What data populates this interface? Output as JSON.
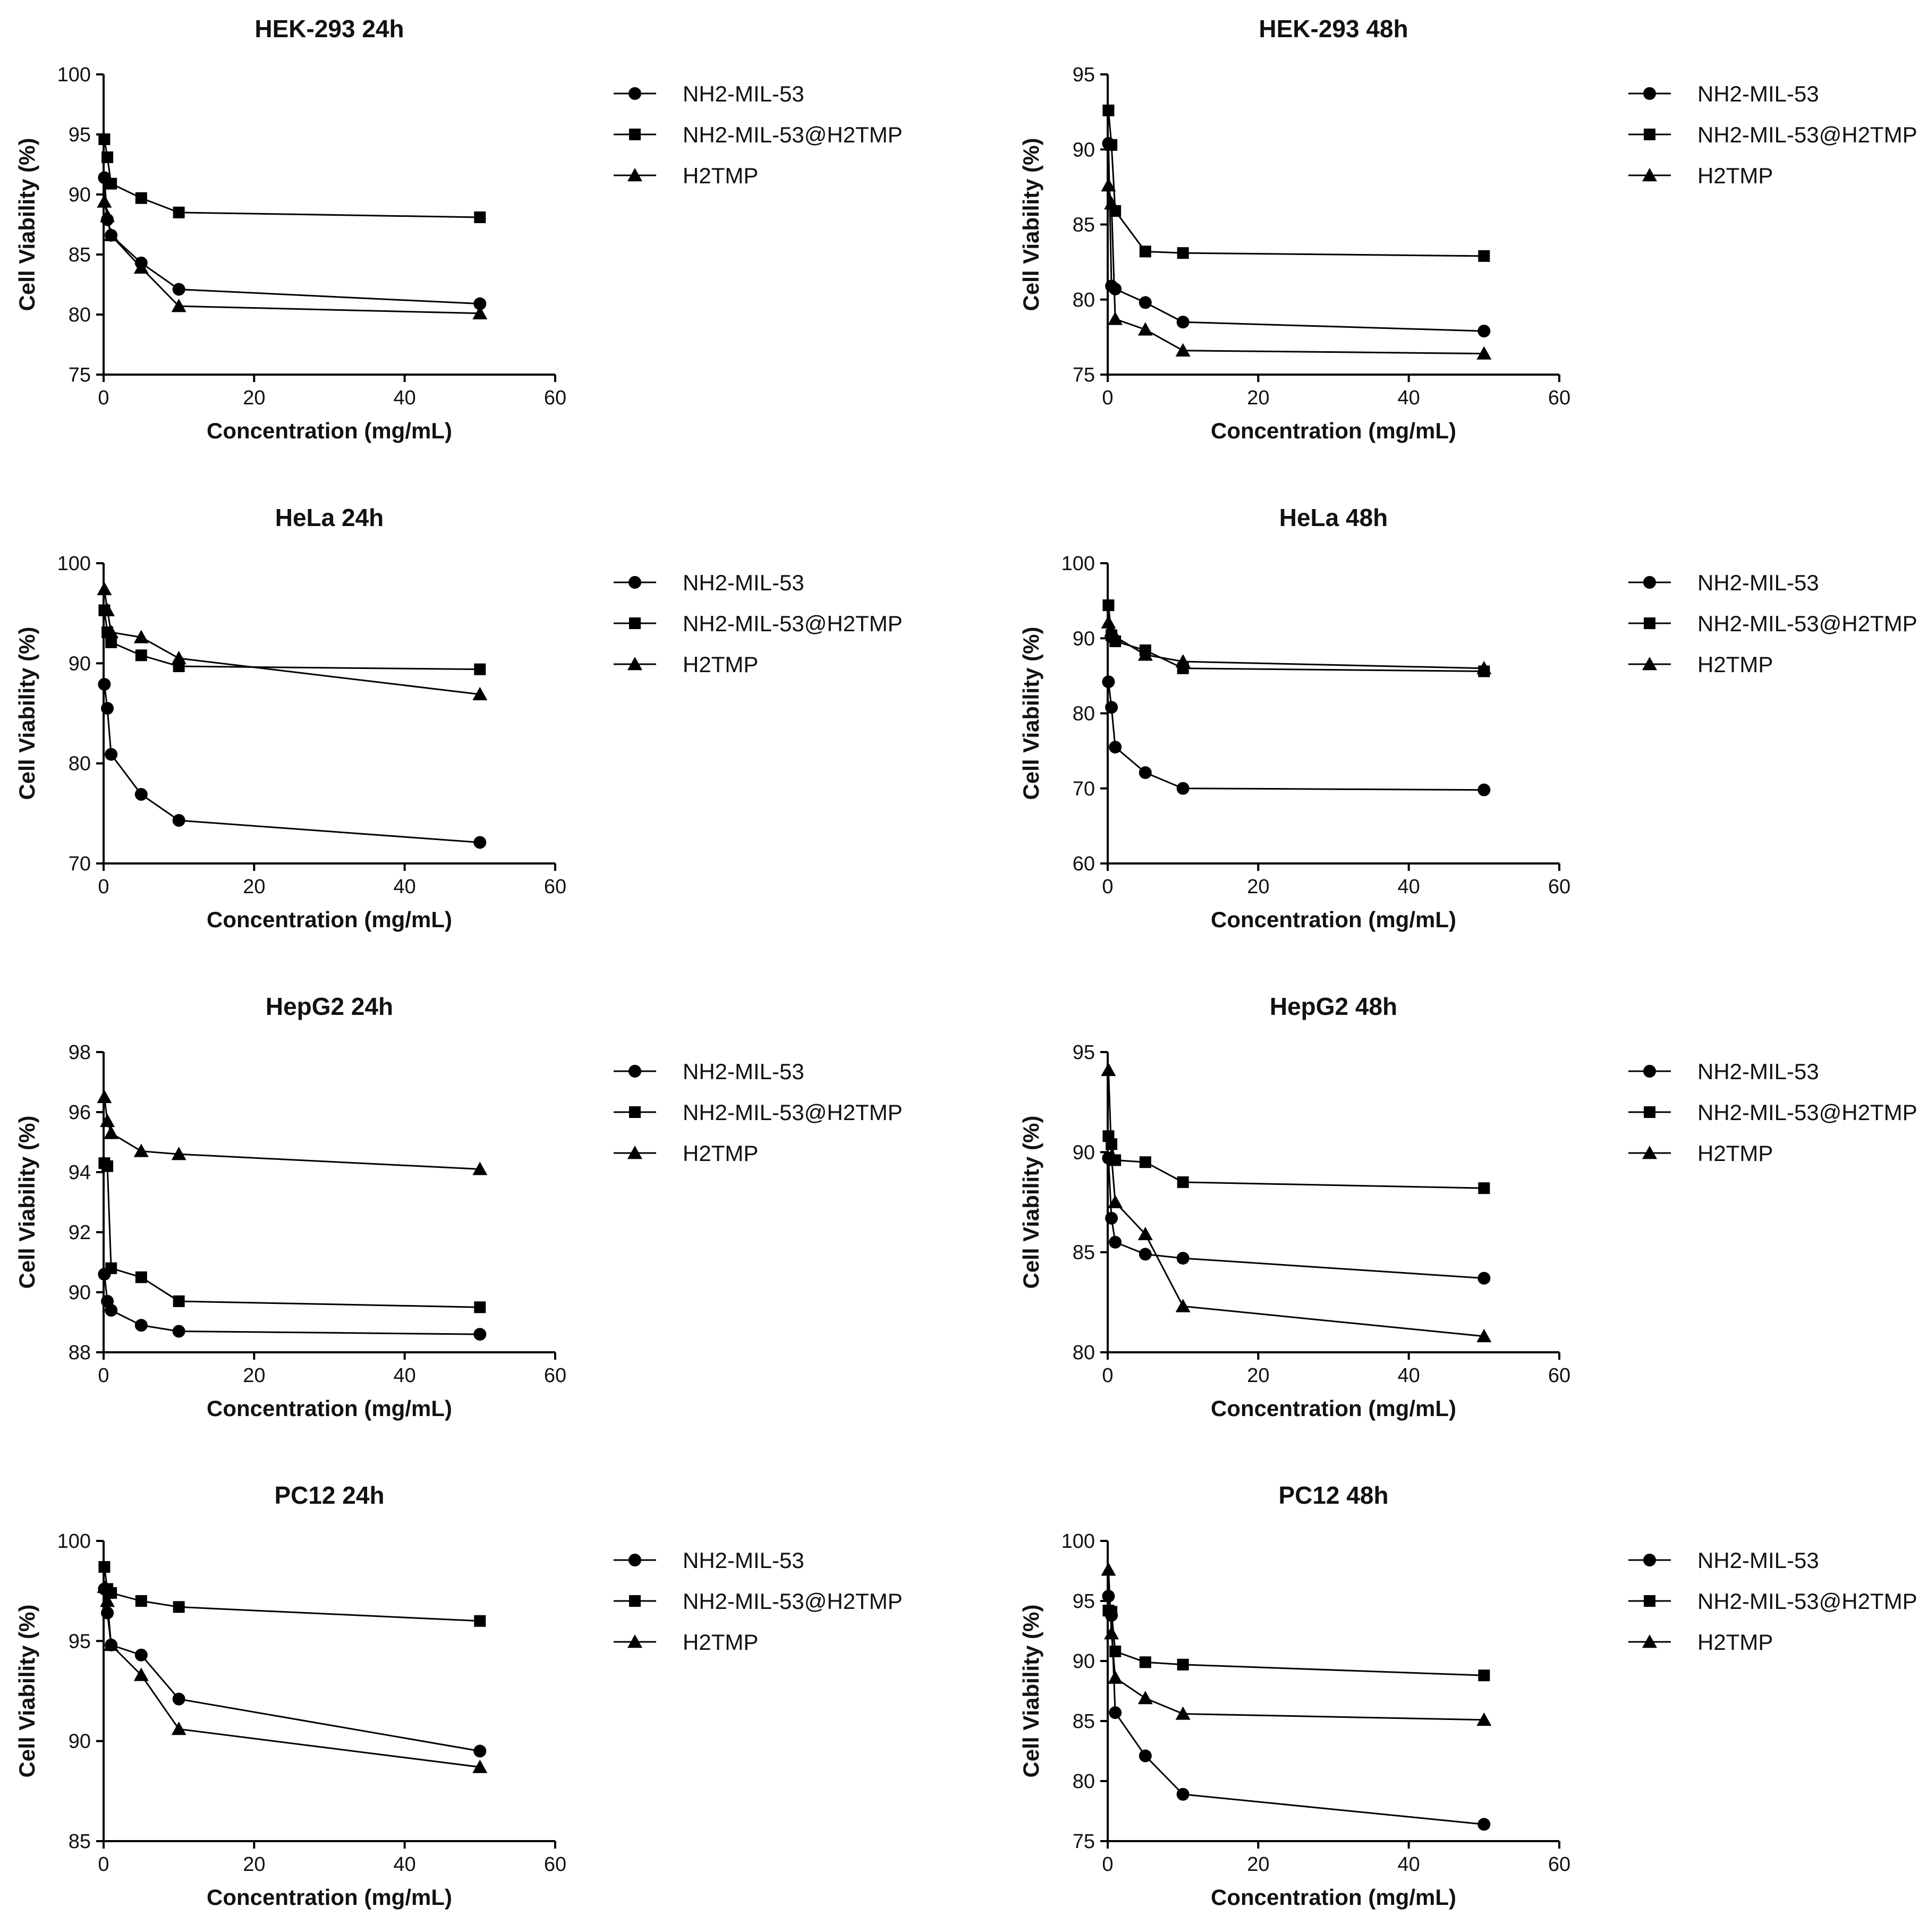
{
  "colors": {
    "ink": "#000000",
    "background": "#ffffff"
  },
  "chart_data": [
    {
      "type": "line",
      "title": "HEK-293 24h",
      "xlabel": "Concentration (mg/mL)",
      "ylabel": "Cell Viability (%)",
      "xlim": [
        0,
        60
      ],
      "ylim": [
        75,
        100
      ],
      "xticks": [
        0,
        20,
        40,
        60
      ],
      "yticks": [
        75,
        80,
        85,
        90,
        95,
        100
      ],
      "grid": false,
      "legend": "right",
      "x": [
        0.1,
        0.5,
        1,
        5,
        10,
        50
      ],
      "series": [
        {
          "name": "NH2-MIL-53",
          "marker": "circle",
          "values": [
            91.4,
            87.9,
            86.6,
            84.3,
            82.1,
            80.9
          ]
        },
        {
          "name": "NH2-MIL-53@H2TMP",
          "marker": "square",
          "values": [
            94.6,
            93.1,
            90.9,
            89.7,
            88.5,
            88.1
          ]
        },
        {
          "name": "H2TMP",
          "marker": "triangle",
          "values": [
            89.4,
            88.2,
            86.6,
            83.9,
            80.7,
            80.1
          ]
        }
      ]
    },
    {
      "type": "line",
      "title": "HEK-293 48h",
      "xlabel": "Concentration (mg/mL)",
      "ylabel": "Cell Viability (%)",
      "xlim": [
        0,
        60
      ],
      "ylim": [
        75,
        95
      ],
      "xticks": [
        0,
        20,
        40,
        60
      ],
      "yticks": [
        75,
        80,
        85,
        90,
        95
      ],
      "grid": false,
      "legend": "right",
      "x": [
        0.1,
        0.5,
        1,
        5,
        10,
        50
      ],
      "series": [
        {
          "name": "NH2-MIL-53",
          "marker": "circle",
          "values": [
            90.4,
            80.9,
            80.7,
            79.8,
            78.5,
            77.9
          ]
        },
        {
          "name": "NH2-MIL-53@H2TMP",
          "marker": "square",
          "values": [
            92.6,
            90.3,
            85.9,
            83.2,
            83.1,
            82.9
          ]
        },
        {
          "name": "H2TMP",
          "marker": "triangle",
          "values": [
            87.6,
            86.4,
            78.7,
            78.0,
            76.6,
            76.4
          ]
        }
      ]
    },
    {
      "type": "line",
      "title": "HeLa 24h",
      "xlabel": "Concentration (mg/mL)",
      "ylabel": "Cell Viability (%)",
      "xlim": [
        0,
        60
      ],
      "ylim": [
        70,
        100
      ],
      "xticks": [
        0,
        20,
        40,
        60
      ],
      "yticks": [
        70,
        80,
        90,
        100
      ],
      "grid": false,
      "legend": "right",
      "x": [
        0.1,
        0.5,
        1,
        5,
        10,
        50
      ],
      "series": [
        {
          "name": "NH2-MIL-53",
          "marker": "circle",
          "values": [
            87.9,
            85.5,
            80.9,
            76.9,
            74.3,
            72.1
          ]
        },
        {
          "name": "NH2-MIL-53@H2TMP",
          "marker": "square",
          "values": [
            95.3,
            93.1,
            92.1,
            90.8,
            89.7,
            89.4
          ]
        },
        {
          "name": "H2TMP",
          "marker": "triangle",
          "values": [
            97.4,
            95.3,
            93.1,
            92.6,
            90.5,
            86.9
          ]
        }
      ]
    },
    {
      "type": "line",
      "title": "HeLa 48h",
      "xlabel": "Concentration (mg/mL)",
      "ylabel": "Cell Viability (%)",
      "xlim": [
        0,
        60
      ],
      "ylim": [
        60,
        100
      ],
      "xticks": [
        0,
        20,
        40,
        60
      ],
      "yticks": [
        60,
        70,
        80,
        90,
        100
      ],
      "grid": false,
      "legend": "right",
      "x": [
        0.1,
        0.5,
        1,
        5,
        10,
        50
      ],
      "series": [
        {
          "name": "NH2-MIL-53",
          "marker": "circle",
          "values": [
            84.2,
            80.8,
            75.5,
            72.1,
            70.0,
            69.8
          ]
        },
        {
          "name": "NH2-MIL-53@H2TMP",
          "marker": "square",
          "values": [
            94.4,
            90.4,
            89.6,
            88.4,
            86.0,
            85.6
          ]
        },
        {
          "name": "H2TMP",
          "marker": "triangle",
          "values": [
            92.1,
            91.0,
            90.2,
            87.8,
            86.9,
            86.0
          ]
        }
      ]
    },
    {
      "type": "line",
      "title": "HepG2 24h",
      "xlabel": "Concentration (mg/mL)",
      "ylabel": "Cell Viability (%)",
      "xlim": [
        0,
        60
      ],
      "ylim": [
        88,
        98
      ],
      "xticks": [
        0,
        20,
        40,
        60
      ],
      "yticks": [
        88,
        90,
        92,
        94,
        96,
        98
      ],
      "grid": false,
      "legend": "right",
      "x": [
        0.1,
        0.5,
        1,
        5,
        10,
        50
      ],
      "series": [
        {
          "name": "NH2-MIL-53",
          "marker": "circle",
          "values": [
            90.6,
            89.7,
            89.4,
            88.9,
            88.7,
            88.6
          ]
        },
        {
          "name": "NH2-MIL-53@H2TMP",
          "marker": "square",
          "values": [
            94.3,
            94.2,
            90.8,
            90.5,
            89.7,
            89.5
          ]
        },
        {
          "name": "H2TMP",
          "marker": "triangle",
          "values": [
            96.5,
            95.7,
            95.3,
            94.7,
            94.6,
            94.1
          ]
        }
      ]
    },
    {
      "type": "line",
      "title": "HepG2 48h",
      "xlabel": "Concentration (mg/mL)",
      "ylabel": "Cell Viability (%)",
      "xlim": [
        0,
        60
      ],
      "ylim": [
        80,
        95
      ],
      "xticks": [
        0,
        20,
        40,
        60
      ],
      "yticks": [
        80,
        85,
        90,
        95
      ],
      "grid": false,
      "legend": "right",
      "x": [
        0.1,
        0.5,
        1,
        5,
        10,
        50
      ],
      "series": [
        {
          "name": "NH2-MIL-53",
          "marker": "circle",
          "values": [
            89.7,
            86.7,
            85.5,
            84.9,
            84.7,
            83.7
          ]
        },
        {
          "name": "NH2-MIL-53@H2TMP",
          "marker": "square",
          "values": [
            90.8,
            90.4,
            89.6,
            89.5,
            88.5,
            88.2
          ]
        },
        {
          "name": "H2TMP",
          "marker": "triangle",
          "values": [
            94.1,
            89.8,
            87.5,
            85.9,
            82.3,
            80.8
          ]
        }
      ]
    },
    {
      "type": "line",
      "title": "PC12 24h",
      "xlabel": "Concentration (mg/mL)",
      "ylabel": "Cell Viability (%)",
      "xlim": [
        0,
        60
      ],
      "ylim": [
        85,
        100
      ],
      "xticks": [
        0,
        20,
        40,
        60
      ],
      "yticks": [
        85,
        90,
        95,
        100
      ],
      "grid": false,
      "legend": "right",
      "x": [
        0.1,
        0.5,
        1,
        5,
        10,
        50
      ],
      "series": [
        {
          "name": "NH2-MIL-53",
          "marker": "circle",
          "values": [
            97.6,
            96.4,
            94.8,
            94.3,
            92.1,
            89.5
          ]
        },
        {
          "name": "NH2-MIL-53@H2TMP",
          "marker": "square",
          "values": [
            98.7,
            97.6,
            97.4,
            97.0,
            96.7,
            96.0
          ]
        },
        {
          "name": "H2TMP",
          "marker": "triangle",
          "values": [
            97.7,
            97.0,
            94.8,
            93.3,
            90.6,
            88.7
          ]
        }
      ]
    },
    {
      "type": "line",
      "title": "PC12 48h",
      "xlabel": "Concentration (mg/mL)",
      "ylabel": "Cell Viability (%)",
      "xlim": [
        0,
        60
      ],
      "ylim": [
        75,
        100
      ],
      "xticks": [
        0,
        20,
        40,
        60
      ],
      "yticks": [
        75,
        80,
        85,
        90,
        95,
        100
      ],
      "grid": false,
      "legend": "right",
      "x": [
        0.1,
        0.5,
        1,
        5,
        10,
        50
      ],
      "series": [
        {
          "name": "NH2-MIL-53",
          "marker": "circle",
          "values": [
            95.4,
            93.8,
            85.7,
            82.1,
            78.9,
            76.4
          ]
        },
        {
          "name": "NH2-MIL-53@H2TMP",
          "marker": "square",
          "values": [
            94.2,
            94.1,
            90.8,
            89.9,
            89.7,
            88.8
          ]
        },
        {
          "name": "H2TMP",
          "marker": "triangle",
          "values": [
            97.6,
            92.3,
            88.6,
            86.9,
            85.6,
            85.1
          ]
        }
      ]
    }
  ]
}
